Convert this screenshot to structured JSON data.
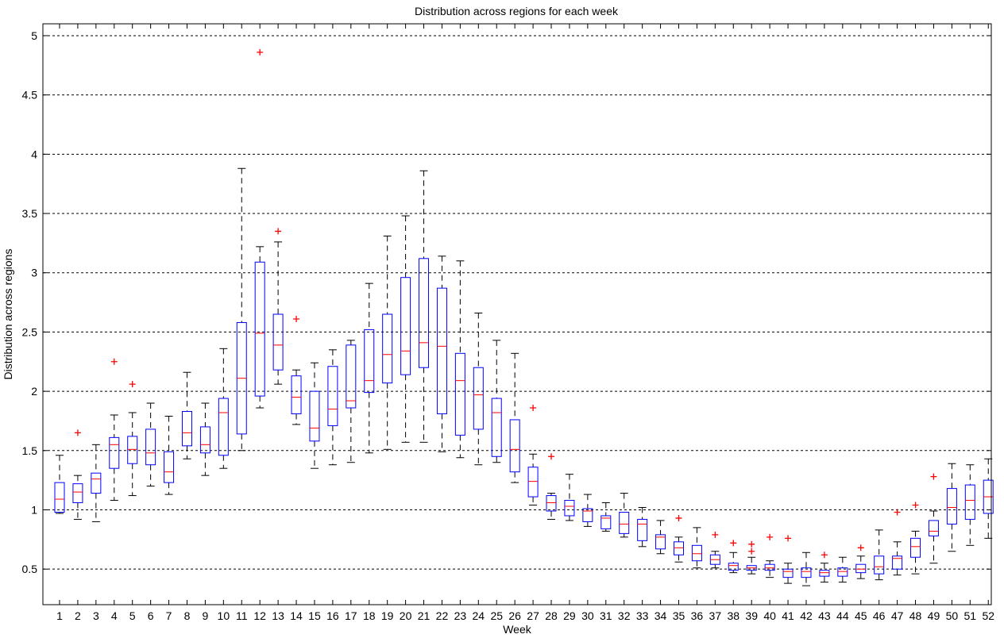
{
  "chart_data": {
    "type": "boxplot",
    "title": "Distribution across regions for each week",
    "xlabel": "Week",
    "ylabel": "Distribution across regions",
    "ylim": [
      0.2,
      5.1
    ],
    "yticks": [
      0.5,
      1,
      1.5,
      2,
      2.5,
      3,
      3.5,
      4,
      4.5,
      5
    ],
    "ytick_labels": [
      "0.5",
      "1",
      "1.5",
      "2",
      "2.5",
      "3",
      "3.5",
      "4",
      "4.5",
      "5"
    ],
    "grid": "horizontal dashed",
    "colors": {
      "box": "#0000ff",
      "median": "#ff0000",
      "whisker": "#000000",
      "outlier": "#ff0000",
      "grid": "#000000"
    },
    "categories": [
      "1",
      "2",
      "3",
      "4",
      "5",
      "6",
      "7",
      "8",
      "9",
      "10",
      "11",
      "12",
      "13",
      "14",
      "15",
      "16",
      "17",
      "18",
      "19",
      "20",
      "21",
      "22",
      "23",
      "24",
      "25",
      "26",
      "27",
      "28",
      "29",
      "30",
      "31",
      "32",
      "33",
      "34",
      "35",
      "36",
      "37",
      "38",
      "39",
      "40",
      "41",
      "42",
      "43",
      "44",
      "45",
      "46",
      "47",
      "48",
      "49",
      "50",
      "51",
      "52"
    ],
    "boxes": [
      {
        "lw": 0.97,
        "q1": 0.98,
        "med": 1.09,
        "q3": 1.23,
        "uw": 1.46,
        "out": []
      },
      {
        "lw": 0.92,
        "q1": 1.06,
        "med": 1.15,
        "q3": 1.22,
        "uw": 1.29,
        "out": [
          1.65
        ]
      },
      {
        "lw": 0.9,
        "q1": 1.14,
        "med": 1.26,
        "q3": 1.31,
        "uw": 1.55,
        "out": []
      },
      {
        "lw": 1.08,
        "q1": 1.35,
        "med": 1.55,
        "q3": 1.61,
        "uw": 1.8,
        "out": [
          2.25
        ]
      },
      {
        "lw": 1.12,
        "q1": 1.39,
        "med": 1.51,
        "q3": 1.62,
        "uw": 1.82,
        "out": [
          2.06
        ]
      },
      {
        "lw": 1.2,
        "q1": 1.38,
        "med": 1.48,
        "q3": 1.68,
        "uw": 1.9,
        "out": []
      },
      {
        "lw": 1.13,
        "q1": 1.23,
        "med": 1.32,
        "q3": 1.49,
        "uw": 1.79,
        "out": []
      },
      {
        "lw": 1.43,
        "q1": 1.54,
        "med": 1.65,
        "q3": 1.83,
        "uw": 2.16,
        "out": []
      },
      {
        "lw": 1.29,
        "q1": 1.48,
        "med": 1.55,
        "q3": 1.7,
        "uw": 1.9,
        "out": []
      },
      {
        "lw": 1.35,
        "q1": 1.46,
        "med": 1.82,
        "q3": 1.94,
        "uw": 2.36,
        "out": []
      },
      {
        "lw": 1.5,
        "q1": 1.64,
        "med": 2.11,
        "q3": 2.58,
        "uw": 3.88,
        "out": []
      },
      {
        "lw": 1.86,
        "q1": 1.96,
        "med": 2.49,
        "q3": 3.09,
        "uw": 3.22,
        "out": [
          4.86
        ]
      },
      {
        "lw": 2.06,
        "q1": 2.18,
        "med": 2.39,
        "q3": 2.65,
        "uw": 3.26,
        "out": [
          3.35
        ]
      },
      {
        "lw": 1.72,
        "q1": 1.81,
        "med": 1.95,
        "q3": 2.13,
        "uw": 2.18,
        "out": [
          2.61
        ]
      },
      {
        "lw": 1.35,
        "q1": 1.58,
        "med": 1.69,
        "q3": 2.0,
        "uw": 2.24,
        "out": []
      },
      {
        "lw": 1.38,
        "q1": 1.71,
        "med": 1.85,
        "q3": 2.21,
        "uw": 2.35,
        "out": []
      },
      {
        "lw": 1.4,
        "q1": 1.86,
        "med": 1.92,
        "q3": 2.39,
        "uw": 2.43,
        "out": []
      },
      {
        "lw": 1.48,
        "q1": 1.99,
        "med": 2.09,
        "q3": 2.52,
        "uw": 2.91,
        "out": []
      },
      {
        "lw": 1.51,
        "q1": 2.07,
        "med": 2.31,
        "q3": 2.65,
        "uw": 3.31,
        "out": []
      },
      {
        "lw": 1.57,
        "q1": 2.14,
        "med": 2.34,
        "q3": 2.96,
        "uw": 3.48,
        "out": []
      },
      {
        "lw": 1.57,
        "q1": 2.2,
        "med": 2.41,
        "q3": 3.12,
        "uw": 3.86,
        "out": []
      },
      {
        "lw": 1.49,
        "q1": 1.81,
        "med": 2.38,
        "q3": 2.87,
        "uw": 3.14,
        "out": []
      },
      {
        "lw": 1.44,
        "q1": 1.63,
        "med": 2.09,
        "q3": 2.32,
        "uw": 3.1,
        "out": []
      },
      {
        "lw": 1.38,
        "q1": 1.68,
        "med": 1.97,
        "q3": 2.2,
        "uw": 2.66,
        "out": []
      },
      {
        "lw": 1.4,
        "q1": 1.45,
        "med": 1.82,
        "q3": 1.94,
        "uw": 2.43,
        "out": []
      },
      {
        "lw": 1.23,
        "q1": 1.32,
        "med": 1.51,
        "q3": 1.76,
        "uw": 2.32,
        "out": []
      },
      {
        "lw": 1.04,
        "q1": 1.11,
        "med": 1.24,
        "q3": 1.36,
        "uw": 1.47,
        "out": [
          1.86
        ]
      },
      {
        "lw": 0.92,
        "q1": 0.99,
        "med": 1.06,
        "q3": 1.12,
        "uw": 1.14,
        "out": [
          1.45
        ]
      },
      {
        "lw": 0.91,
        "q1": 0.95,
        "med": 1.03,
        "q3": 1.08,
        "uw": 1.3,
        "out": []
      },
      {
        "lw": 0.86,
        "q1": 0.9,
        "med": 0.99,
        "q3": 1.01,
        "uw": 1.13,
        "out": []
      },
      {
        "lw": 0.82,
        "q1": 0.84,
        "med": 0.93,
        "q3": 0.95,
        "uw": 1.06,
        "out": []
      },
      {
        "lw": 0.77,
        "q1": 0.8,
        "med": 0.88,
        "q3": 0.98,
        "uw": 1.14,
        "out": []
      },
      {
        "lw": 0.69,
        "q1": 0.74,
        "med": 0.88,
        "q3": 0.92,
        "uw": 1.02,
        "out": []
      },
      {
        "lw": 0.63,
        "q1": 0.67,
        "med": 0.77,
        "q3": 0.79,
        "uw": 0.91,
        "out": []
      },
      {
        "lw": 0.56,
        "q1": 0.62,
        "med": 0.68,
        "q3": 0.73,
        "uw": 0.77,
        "out": [
          0.93
        ]
      },
      {
        "lw": 0.51,
        "q1": 0.57,
        "med": 0.63,
        "q3": 0.7,
        "uw": 0.85,
        "out": []
      },
      {
        "lw": 0.51,
        "q1": 0.54,
        "med": 0.58,
        "q3": 0.62,
        "uw": 0.65,
        "out": [
          0.79
        ]
      },
      {
        "lw": 0.47,
        "q1": 0.49,
        "med": 0.53,
        "q3": 0.55,
        "uw": 0.64,
        "out": [
          0.72
        ]
      },
      {
        "lw": 0.46,
        "q1": 0.49,
        "med": 0.51,
        "q3": 0.53,
        "uw": 0.6,
        "out": [
          0.65,
          0.71
        ]
      },
      {
        "lw": 0.43,
        "q1": 0.49,
        "med": 0.51,
        "q3": 0.54,
        "uw": 0.57,
        "out": [
          0.77
        ]
      },
      {
        "lw": 0.38,
        "q1": 0.43,
        "med": 0.48,
        "q3": 0.5,
        "uw": 0.55,
        "out": [
          0.76
        ]
      },
      {
        "lw": 0.36,
        "q1": 0.43,
        "med": 0.48,
        "q3": 0.51,
        "uw": 0.64,
        "out": []
      },
      {
        "lw": 0.39,
        "q1": 0.44,
        "med": 0.47,
        "q3": 0.49,
        "uw": 0.55,
        "out": [
          0.62
        ]
      },
      {
        "lw": 0.39,
        "q1": 0.44,
        "med": 0.48,
        "q3": 0.51,
        "uw": 0.6,
        "out": []
      },
      {
        "lw": 0.42,
        "q1": 0.47,
        "med": 0.5,
        "q3": 0.54,
        "uw": 0.61,
        "out": [
          0.68
        ]
      },
      {
        "lw": 0.41,
        "q1": 0.46,
        "med": 0.52,
        "q3": 0.61,
        "uw": 0.83,
        "out": []
      },
      {
        "lw": 0.45,
        "q1": 0.5,
        "med": 0.59,
        "q3": 0.61,
        "uw": 0.73,
        "out": [
          0.98
        ]
      },
      {
        "lw": 0.46,
        "q1": 0.6,
        "med": 0.69,
        "q3": 0.76,
        "uw": 0.82,
        "out": [
          1.04
        ]
      },
      {
        "lw": 0.55,
        "q1": 0.78,
        "med": 0.82,
        "q3": 0.91,
        "uw": 0.99,
        "out": [
          1.28
        ]
      },
      {
        "lw": 0.65,
        "q1": 0.88,
        "med": 1.02,
        "q3": 1.18,
        "uw": 1.39,
        "out": []
      },
      {
        "lw": 0.7,
        "q1": 0.92,
        "med": 1.08,
        "q3": 1.21,
        "uw": 1.38,
        "out": []
      },
      {
        "lw": 0.76,
        "q1": 0.97,
        "med": 1.11,
        "q3": 1.25,
        "uw": 1.43,
        "out": []
      }
    ]
  }
}
